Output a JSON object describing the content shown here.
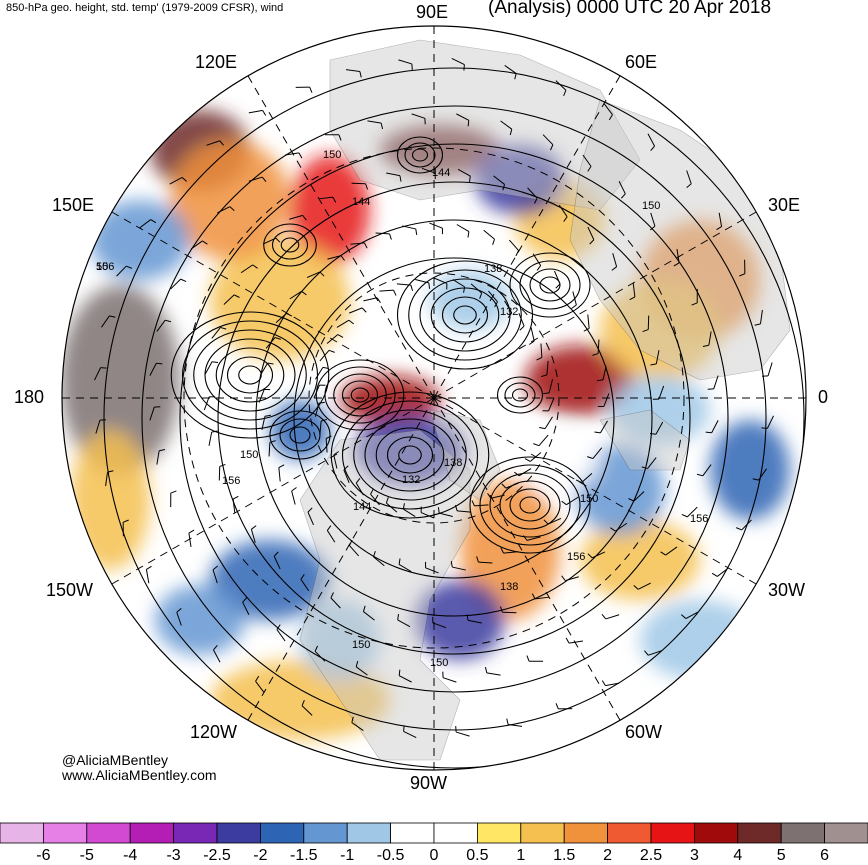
{
  "title_left": "850-hPa geo. height, std. temp' (1979-2009 CFSR), wind",
  "title_right": "(Analysis) 0000 UTC 20 Apr 2018",
  "credit_line1": "@AliciaMBentley",
  "credit_line2": "www.AliciaMBentley.com",
  "longitude_labels": {
    "lon_90e": "90E",
    "lon_60e": "60E",
    "lon_120e": "120E",
    "lon_150e": "150E",
    "lon_30e": "30E",
    "lon_180": "180",
    "lon_0": "0",
    "lon_150w": "150W",
    "lon_30w": "30W",
    "lon_120w": "120W",
    "lon_60w": "60W",
    "lon_90w": "90W"
  },
  "contour_labels": [
    "150",
    "144",
    "150",
    "144",
    "138",
    "132",
    "150",
    "156",
    "132",
    "138",
    "144",
    "150",
    "156",
    "138",
    "156",
    "150",
    "150",
    "156",
    "50"
  ],
  "colorbar": {
    "labels": [
      "-6",
      "-5",
      "-4",
      "-3",
      "-2.5",
      "-2",
      "-1.5",
      "-1",
      "-0.5",
      "0",
      "0.5",
      "1",
      "1.5",
      "2",
      "2.5",
      "3",
      "4",
      "5",
      "6"
    ],
    "colors": [
      "#e6b4e6",
      "#e680e6",
      "#d24ad2",
      "#b41eb4",
      "#7828b4",
      "#3c3ca0",
      "#2d64b4",
      "#6496d2",
      "#a0c8e6",
      "#ffffff",
      "#ffffff",
      "#ffe664",
      "#f5c050",
      "#f0913c",
      "#f05a32",
      "#e61414",
      "#a00a0a",
      "#6e2a28",
      "#7d7171",
      "#a09090"
    ]
  },
  "colors": {
    "land": "#c8c8c8",
    "ocean": "#ffffff",
    "contour": "#000000"
  }
}
